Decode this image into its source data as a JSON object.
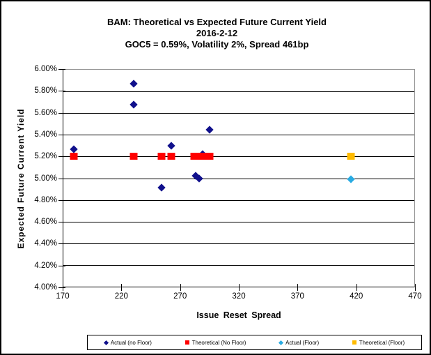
{
  "chart_data": {
    "type": "scatter",
    "title": "BAM: Theoretical vs Expected Future Current Yield",
    "subtitle1": "2016-2-12",
    "subtitle2": "GOC5 = 0.59%, Volatility 2%, Spread 461bp",
    "xlabel": "Issue Reset Spread",
    "ylabel": "Expected Future Current Yield",
    "xlim": [
      170,
      470
    ],
    "ylim": [
      4.0,
      6.0
    ],
    "x_ticks": [
      170,
      220,
      270,
      320,
      370,
      420,
      470
    ],
    "y_ticks": [
      {
        "value": 6.0,
        "label": "6.00%"
      },
      {
        "value": 5.8,
        "label": "5.80%"
      },
      {
        "value": 5.6,
        "label": "5.60%"
      },
      {
        "value": 5.4,
        "label": "5.40%"
      },
      {
        "value": 5.2,
        "label": "5.20%"
      },
      {
        "value": 5.0,
        "label": "5.00%"
      },
      {
        "value": 4.8,
        "label": "4.80%"
      },
      {
        "value": 4.6,
        "label": "4.60%"
      },
      {
        "value": 4.4,
        "label": "4.40%"
      },
      {
        "value": 4.2,
        "label": "4.20%"
      },
      {
        "value": 4.0,
        "label": "4.00%"
      }
    ],
    "grid": "horizontal-only",
    "legend_position": "bottom",
    "series": [
      {
        "name": "Actual (no Floor)",
        "marker": "diamond",
        "color": "#10108C",
        "points": [
          [
            179,
            5.27
          ],
          [
            230,
            5.87
          ],
          [
            230,
            5.68
          ],
          [
            254,
            4.91
          ],
          [
            262,
            5.3
          ],
          [
            283,
            5.02
          ],
          [
            286,
            5.0
          ],
          [
            289,
            5.22
          ],
          [
            295,
            5.45
          ]
        ]
      },
      {
        "name": "Theoretical (No Floor)",
        "marker": "square",
        "color": "#FF0000",
        "points": [
          [
            179,
            5.2
          ],
          [
            230,
            5.2
          ],
          [
            254,
            5.2
          ],
          [
            262,
            5.2
          ],
          [
            282,
            5.2
          ],
          [
            286,
            5.2
          ],
          [
            291,
            5.2
          ],
          [
            295,
            5.2
          ]
        ]
      },
      {
        "name": "Actual (Floor)",
        "marker": "diamond",
        "color": "#29ABE2",
        "points": [
          [
            416,
            4.99
          ]
        ]
      },
      {
        "name": "Theoretical (Floor)",
        "marker": "square",
        "color": "#FFBB00",
        "points": [
          [
            416,
            5.2
          ]
        ]
      }
    ]
  },
  "colors": {
    "background": "#FFFFFF",
    "text": "#000000",
    "gridline": "#000000",
    "plot_border_top_right": "#949494",
    "axis": "#000000",
    "series_actual_no_floor": "#10108C",
    "series_theoretical_no_floor": "#FF0000",
    "series_actual_floor": "#29ABE2",
    "series_theoretical_floor": "#FFBB00"
  }
}
